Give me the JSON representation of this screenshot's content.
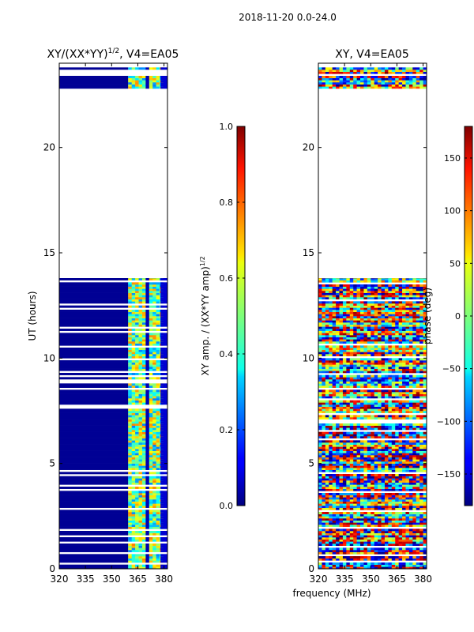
{
  "figure_title": "2018-11-20 0.0-24.0",
  "xlabel_shared": "frequency (MHz)",
  "chart_data": [
    {
      "type": "heatmap",
      "title_main": "XY/(XX*YY)",
      "title_sup": "1/2",
      "title_rest": ", V4=EA05",
      "ylabel": "UT (hours)",
      "xlabel": "",
      "xlim": [
        320,
        382
      ],
      "ylim": [
        0,
        24
      ],
      "xticks": [
        320,
        335,
        350,
        365,
        380
      ],
      "yticks": [
        0,
        5,
        10,
        15,
        20
      ],
      "colormap": "jet",
      "colorbar": {
        "label_main": "XY amp. / (XX*YY amp)",
        "label_sup": "1/2",
        "range": [
          0.0,
          1.0
        ],
        "ticks": [
          0.0,
          0.2,
          0.4,
          0.6,
          0.8,
          1.0
        ],
        "tick_labels": [
          "0.0",
          "0.2",
          "0.4",
          "0.6",
          "0.8",
          "1.0"
        ]
      },
      "data_blocks": [
        {
          "t_start": 0.0,
          "t_end": 13.8,
          "note": "amplitude near 0 below ~360 MHz, ~0.3-0.7 in 360-378 MHz"
        },
        {
          "t_start": 22.8,
          "t_end": 23.8,
          "note": "amplitude near 0 below ~360 MHz, ~0.3-0.7 in 360-378 MHz"
        }
      ]
    },
    {
      "type": "heatmap",
      "title": "XY, V4=EA05",
      "ylabel": "",
      "xlabel": "frequency (MHz)",
      "xlim": [
        320,
        382
      ],
      "ylim": [
        0,
        24
      ],
      "xticks": [
        320,
        335,
        350,
        365,
        380
      ],
      "yticks": [
        0,
        5,
        10,
        15,
        20
      ],
      "colormap": "jet",
      "colorbar": {
        "label": "phase (deg)",
        "range": [
          -180,
          180
        ],
        "ticks": [
          -150,
          -100,
          -50,
          0,
          50,
          100,
          150
        ],
        "tick_labels": [
          "−150",
          "−100",
          "−50",
          "0",
          "50",
          "100",
          "150"
        ]
      },
      "data_blocks": [
        {
          "t_start": 0.0,
          "t_end": 13.8,
          "note": "phase spans full -180..180 range, noisy"
        },
        {
          "t_start": 22.8,
          "t_end": 23.8,
          "note": "phase spans full -180..180 range, noisy"
        }
      ]
    }
  ]
}
